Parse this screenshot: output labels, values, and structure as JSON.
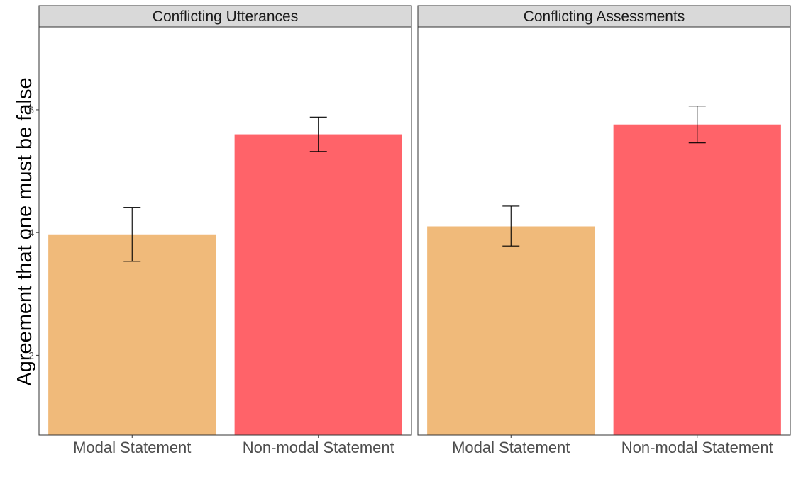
{
  "chart_data": {
    "type": "bar",
    "ylabel": "Agreement that one must be false",
    "xlabel": "",
    "ylim": [
      0.7,
      7.35
    ],
    "yticks": [
      2,
      4,
      6
    ],
    "grid": false,
    "legend": "none",
    "colors": [
      "#F0BA7A",
      "#FF6369"
    ],
    "panels": [
      {
        "title": "Conflicting Utterances",
        "categories": [
          "Modal Statement",
          "Non-modal Statement"
        ],
        "values": [
          3.97,
          5.6
        ],
        "error_low": [
          3.53,
          5.32
        ],
        "error_high": [
          4.41,
          5.88
        ]
      },
      {
        "title": "Conflicting Assessments",
        "categories": [
          "Modal Statement",
          "Non-modal Statement"
        ],
        "values": [
          4.1,
          5.76
        ],
        "error_low": [
          3.78,
          5.46
        ],
        "error_high": [
          4.43,
          6.06
        ]
      }
    ]
  }
}
